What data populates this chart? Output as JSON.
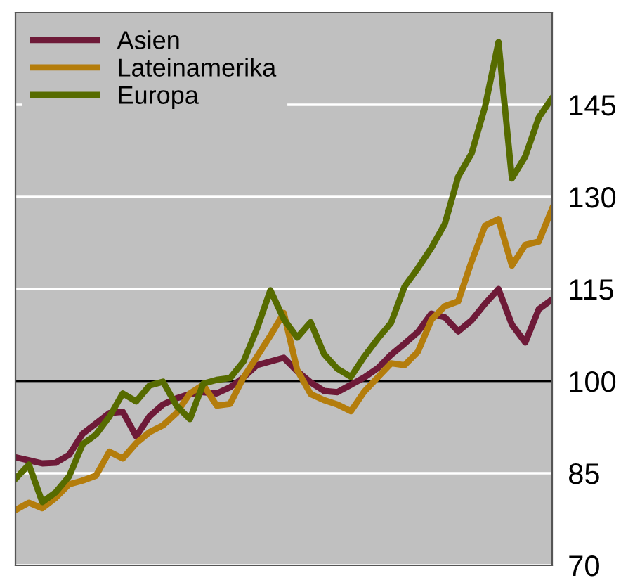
{
  "chart_data": {
    "type": "line",
    "categories": [
      null,
      null,
      null,
      null,
      null,
      null,
      null,
      null,
      null,
      null,
      null,
      null,
      null,
      null,
      null,
      null,
      null,
      null,
      null,
      null,
      null,
      null,
      null,
      null,
      null,
      null,
      null,
      null,
      null,
      null,
      null,
      null,
      null,
      null,
      null,
      null,
      null,
      null,
      null,
      null,
      null
    ],
    "ylim": [
      70,
      160
    ],
    "yticks": [
      70,
      85,
      100,
      115,
      130,
      145
    ],
    "tick_labels": "y",
    "grid": "y",
    "legend": "top left",
    "ref_lines": [
      {
        "axis": "y",
        "value": 100,
        "color": "#000000"
      }
    ],
    "series": [
      {
        "name": "Asien",
        "color": "#6e1a38",
        "values": [
          87.6,
          87.1,
          86.6,
          86.7,
          88,
          91.4,
          93.1,
          94.8,
          95,
          91,
          94.3,
          96.2,
          97.2,
          97.9,
          98.2,
          98,
          99,
          100.6,
          102.6,
          103.2,
          103.8,
          101.6,
          99.8,
          98.4,
          98.2,
          99.4,
          100.6,
          102.1,
          104.3,
          106.1,
          108,
          111,
          110.4,
          108.1,
          109.9,
          112.6,
          115,
          109.2,
          106.3,
          111.7,
          113.3
        ]
      },
      {
        "name": "Lateinamerika",
        "color": "#b47d0c",
        "values": [
          79,
          80.2,
          79.3,
          81,
          83.2,
          83.8,
          84.6,
          88.5,
          87.4,
          89.9,
          91.7,
          92.8,
          94.8,
          98,
          99.4,
          96,
          96.3,
          100.6,
          104,
          107.4,
          111.1,
          101.8,
          97.9,
          96.9,
          96.2,
          95.1,
          98.3,
          100.6,
          102.9,
          102.6,
          104.8,
          110,
          112.2,
          113,
          119.5,
          125.3,
          126.4,
          118.8,
          122.2,
          122.7,
          128.1
        ]
      },
      {
        "name": "Europa",
        "color": "#566b00",
        "values": [
          84.1,
          86.4,
          80.3,
          81.9,
          84.5,
          89.7,
          91.3,
          94.2,
          98,
          96.7,
          99.3,
          99.9,
          96,
          93.8,
          99.6,
          100.2,
          100.5,
          103.2,
          108.5,
          114.8,
          110.1,
          107.1,
          109.6,
          104.4,
          102,
          100.7,
          104,
          106.9,
          109.5,
          115.4,
          118.4,
          121.7,
          125.6,
          133.3,
          137.1,
          144.7,
          155.2,
          133,
          136.6,
          142.9,
          146.1
        ]
      }
    ]
  }
}
